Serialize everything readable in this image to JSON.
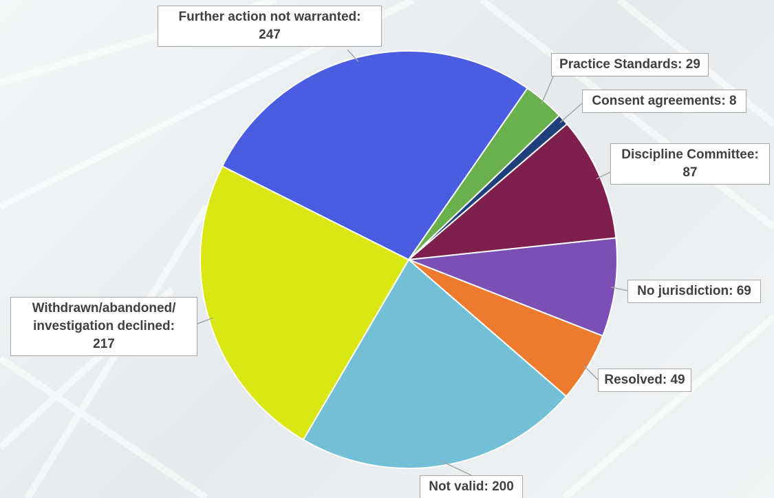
{
  "chart_data": {
    "type": "pie",
    "categories": [
      "Further action not warranted:",
      "Practice Standards:",
      "Consent agreements:",
      "Discipline Committee:",
      "No jurisdiction:",
      "Resolved:",
      "Not valid:",
      "Withdrawn/abandoned/ investigation declined:"
    ],
    "values": [
      247,
      29,
      8,
      87,
      69,
      49,
      200,
      217
    ],
    "colors": [
      "#4a5de0",
      "#6ab04c",
      "#1f3f7a",
      "#7e1f4e",
      "#7b4fb4",
      "#ec7a2f",
      "#72bfd6",
      "#d9e815"
    ]
  }
}
